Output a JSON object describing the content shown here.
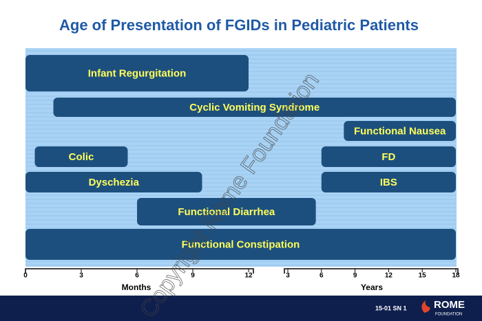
{
  "chart_data": {
    "type": "range-bar",
    "title": "Age of Presentation of FGIDs in Pediatric Patients",
    "axes": [
      {
        "label": "Months",
        "lim": [
          0,
          12
        ],
        "ticks": [
          0,
          3,
          6,
          9,
          12
        ]
      },
      {
        "label": "Years",
        "lim": [
          3,
          18
        ],
        "ticks": [
          3,
          6,
          9,
          12,
          15,
          18
        ]
      }
    ],
    "color": "#1d4f7e",
    "label_color": "#ffff5a",
    "background": "#a9d3f5",
    "bars": [
      {
        "name": "Infant Regurgitation",
        "start": 0,
        "start_axis": 0,
        "end": 12,
        "end_axis": 0
      },
      {
        "name": "Cyclic Vomiting Syndrome",
        "start": 1.5,
        "start_axis": 0,
        "end": 18,
        "end_axis": 1
      },
      {
        "name": "Functional Nausea",
        "start": 8,
        "start_axis": 1,
        "end": 18,
        "end_axis": 1
      },
      {
        "name": "Colic",
        "start": 0.5,
        "start_axis": 0,
        "end": 5.5,
        "end_axis": 0
      },
      {
        "name": "FD",
        "start": 6,
        "start_axis": 1,
        "end": 18,
        "end_axis": 1
      },
      {
        "name": "Dyschezia",
        "start": 0,
        "start_axis": 0,
        "end": 9.5,
        "end_axis": 0
      },
      {
        "name": "IBS",
        "start": 6,
        "start_axis": 1,
        "end": 18,
        "end_axis": 1
      },
      {
        "name": "Functional Diarrhea",
        "start": 6,
        "start_axis": 0,
        "end": 5.5,
        "end_axis": 1
      },
      {
        "name": "Functional Constipation",
        "start": 0,
        "start_axis": 0,
        "end": 18,
        "end_axis": 1
      }
    ]
  },
  "watermark": "Copyright Rome Foundation",
  "footer": {
    "slide_id": "15-01  SN 1",
    "logo": "ROME",
    "logo_sub": "FOUNDATION"
  }
}
